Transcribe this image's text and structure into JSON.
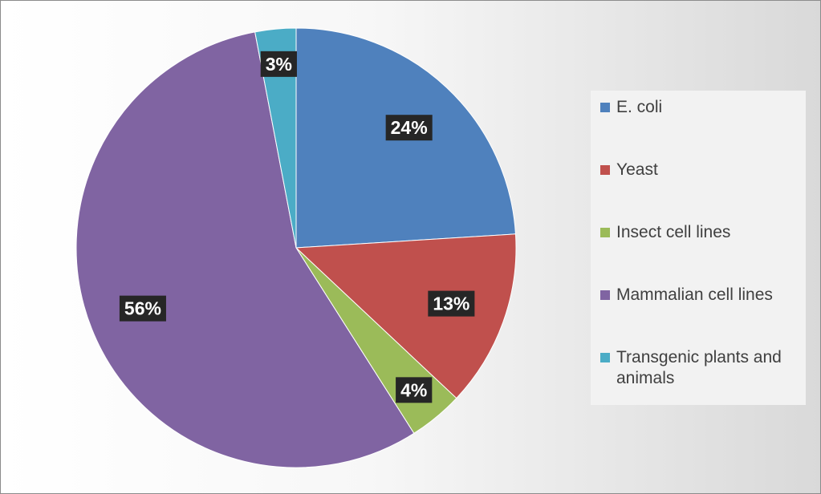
{
  "chart_data": {
    "type": "pie",
    "title": "",
    "legend_position": "right",
    "slices": [
      {
        "name": "E. coli",
        "value": 24,
        "label": "24%",
        "color": "#4f81bd"
      },
      {
        "name": "Yeast",
        "value": 13,
        "label": "13%",
        "color": "#c0504d"
      },
      {
        "name": "Insect cell lines",
        "value": 4,
        "label": "4%",
        "color": "#9bbb59"
      },
      {
        "name": "Mammalian cell lines",
        "value": 56,
        "label": "56%",
        "color": "#8064a2"
      },
      {
        "name": "Transgenic plants and animals",
        "value": 3,
        "label": "3%",
        "color": "#4bacc6"
      }
    ]
  }
}
